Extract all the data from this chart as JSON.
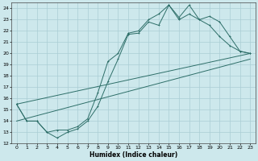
{
  "xlabel": "Humidex (Indice chaleur)",
  "xlim": [
    -0.5,
    23.5
  ],
  "ylim": [
    12,
    24.5
  ],
  "yticks": [
    12,
    13,
    14,
    15,
    16,
    17,
    18,
    19,
    20,
    21,
    22,
    23,
    24
  ],
  "xticks": [
    0,
    1,
    2,
    3,
    4,
    5,
    6,
    7,
    8,
    9,
    10,
    11,
    12,
    13,
    14,
    15,
    16,
    17,
    18,
    19,
    20,
    21,
    22,
    23
  ],
  "bg_color": "#cde8ec",
  "grid_color": "#aacdd4",
  "line_color": "#2d6e68",
  "line1_x": [
    0,
    1,
    2,
    3,
    4,
    5,
    6,
    7,
    8,
    9,
    10,
    11,
    12,
    13,
    14,
    15,
    16,
    17,
    18,
    19,
    20,
    21,
    22,
    23
  ],
  "line1_y": [
    15.5,
    14.0,
    14.0,
    13.0,
    12.5,
    13.0,
    13.3,
    14.0,
    15.3,
    17.5,
    19.5,
    21.7,
    21.8,
    22.8,
    22.5,
    24.3,
    23.2,
    24.3,
    23.0,
    22.5,
    21.5,
    20.7,
    20.2,
    20.0
  ],
  "line2_x": [
    0,
    1,
    2,
    3,
    4,
    5,
    6,
    7,
    8,
    9,
    10,
    11,
    12,
    13,
    14,
    15,
    16,
    17,
    18,
    19,
    20,
    21,
    22,
    23
  ],
  "line2_y": [
    15.5,
    14.0,
    14.0,
    13.0,
    13.2,
    13.2,
    13.5,
    14.2,
    16.5,
    19.3,
    20.0,
    21.8,
    22.0,
    23.0,
    23.5,
    24.3,
    23.0,
    23.5,
    23.0,
    23.3,
    22.8,
    21.5,
    20.2,
    20.0
  ],
  "line3_x": [
    0,
    23
  ],
  "line3_y": [
    15.5,
    20.0
  ],
  "line4_x": [
    0,
    23
  ],
  "line4_y": [
    14.0,
    19.5
  ]
}
